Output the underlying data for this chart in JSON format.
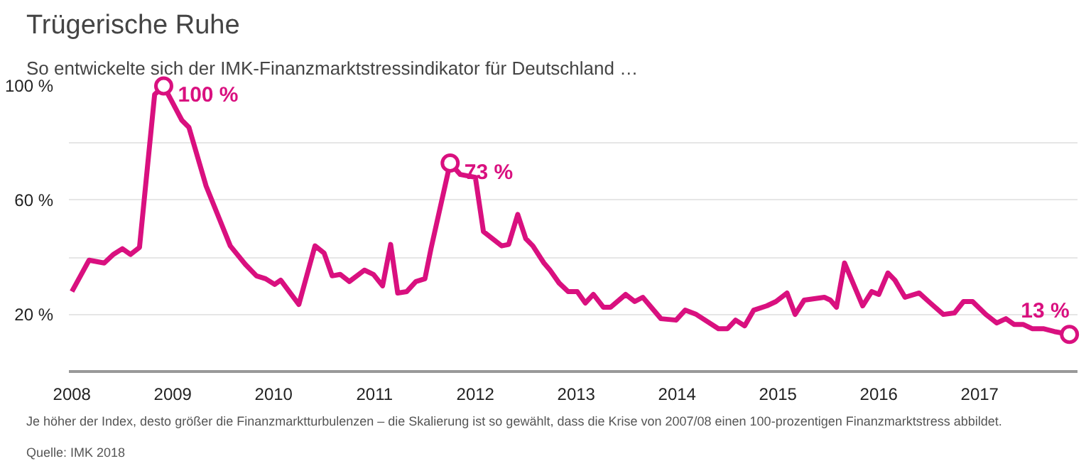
{
  "chart_data": {
    "type": "line",
    "title": "Trügerische Ruhe",
    "subtitle": "So entwickelte sich der IMK-Finanzmarktstressindikator für Deutschland …",
    "x": [
      2008.0,
      2008.17,
      2008.32,
      2008.41,
      2008.5,
      2008.58,
      2008.67,
      2008.82,
      2008.91,
      2009.0,
      2009.09,
      2009.16,
      2009.33,
      2009.57,
      2009.72,
      2009.83,
      2009.92,
      2010.01,
      2010.07,
      2010.25,
      2010.41,
      2010.5,
      2010.58,
      2010.66,
      2010.75,
      2010.9,
      2010.99,
      2011.08,
      2011.16,
      2011.23,
      2011.32,
      2011.41,
      2011.5,
      2011.56,
      2011.75,
      2011.85,
      2012.0,
      2012.08,
      2012.26,
      2012.33,
      2012.42,
      2012.5,
      2012.57,
      2012.68,
      2012.74,
      2012.83,
      2012.92,
      2013.01,
      2013.09,
      2013.17,
      2013.27,
      2013.34,
      2013.49,
      2013.58,
      2013.66,
      2013.84,
      2013.99,
      2014.08,
      2014.19,
      2014.41,
      2014.5,
      2014.58,
      2014.67,
      2014.76,
      2014.89,
      2014.98,
      2015.09,
      2015.17,
      2015.26,
      2015.46,
      2015.52,
      2015.58,
      2015.66,
      2015.84,
      2015.93,
      2016.0,
      2016.09,
      2016.16,
      2016.26,
      2016.4,
      2016.51,
      2016.64,
      2016.75,
      2016.84,
      2016.93,
      2017.06,
      2017.17,
      2017.26,
      2017.34,
      2017.43,
      2017.52,
      2017.63,
      2017.74,
      2017.89
    ],
    "series": [
      {
        "color": "#d9107f",
        "values": [
          28,
          39,
          38,
          41,
          43,
          41,
          43.5,
          97,
          100,
          94,
          88,
          85.5,
          65,
          44,
          37.5,
          33.5,
          32.5,
          30.5,
          32,
          23.5,
          44,
          41.5,
          33.5,
          34,
          31.5,
          35.5,
          34,
          30,
          44.5,
          27.5,
          28,
          31.5,
          32.5,
          43,
          73,
          69,
          68,
          49,
          44,
          44.5,
          55,
          46.5,
          44,
          38,
          35.5,
          31,
          28,
          28,
          24,
          27,
          22.5,
          22.5,
          27,
          24.5,
          26,
          18.5,
          18,
          21.5,
          20,
          15,
          15,
          18,
          16,
          21.5,
          23,
          24.5,
          27.5,
          20,
          25,
          26,
          25,
          22.5,
          38,
          23,
          28,
          27,
          34.5,
          32,
          26,
          27.5,
          24,
          20,
          20.5,
          24.5,
          24.5,
          20,
          17,
          18.5,
          16.5,
          16.5,
          15,
          15,
          14,
          13
        ]
      }
    ],
    "xlim": [
      2007.97,
      2017.97
    ],
    "xticks": [
      2008,
      2009,
      2010,
      2011,
      2012,
      2013,
      2014,
      2015,
      2016,
      2017
    ],
    "ylim": [
      0,
      100
    ],
    "yticks": [
      {
        "value": 20,
        "label": "20 %"
      },
      {
        "value": 40,
        "label": null
      },
      {
        "value": 60,
        "label": "60 %"
      },
      {
        "value": 80,
        "label": null
      },
      {
        "value": 100,
        "label": "100 %"
      }
    ],
    "grid": "y",
    "marker": "none",
    "line_style": "solid",
    "annotations": [
      {
        "text": "100 %",
        "x": 2008.91,
        "y": 100
      },
      {
        "text": "73 %",
        "x": 2011.75,
        "y": 73
      },
      {
        "text": "13 %",
        "x": 2017.89,
        "y": 13
      },
      "Je höher der Index, desto größer die Finanzmarktturbulenzen – die Skalierung ist so gewählt, dass die Krise von 2007/08 einen 100-prozentigen Finanzmarktstress abbildet.",
      "Quelle: IMK 2018"
    ]
  }
}
